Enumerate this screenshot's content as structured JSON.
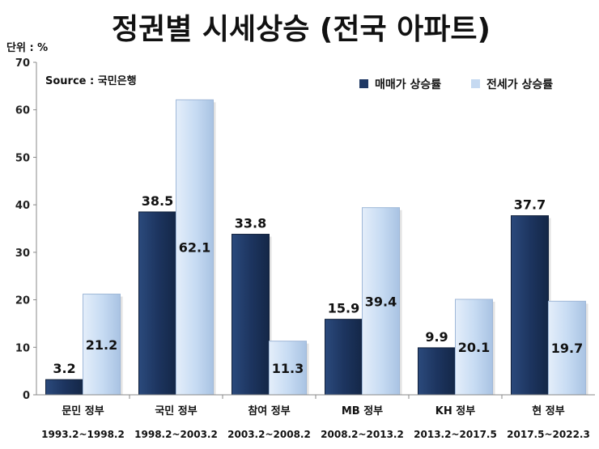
{
  "chart_data": {
    "type": "bar",
    "title": "정권별 시세상승 (전국 아파트)",
    "unit_label": "단위 : %",
    "source": "Source : 국민은행",
    "categories": [
      "문민 정부",
      "국민 정부",
      "참여 정부",
      "MB 정부",
      "KH 정부",
      "현 정부"
    ],
    "periods": [
      "1993.2~1998.2",
      "1998.2~2003.2",
      "2003.2~2008.2",
      "2008.2~2013.2",
      "2013.2~2017.5",
      "2017.5~2022.3"
    ],
    "series": [
      {
        "name": "매매가 상승률",
        "color": "#1f3864",
        "values": [
          3.2,
          38.5,
          33.8,
          15.9,
          9.9,
          37.7
        ]
      },
      {
        "name": "전세가 상승률",
        "color": "#c5d9f1",
        "values": [
          21.2,
          62.1,
          11.3,
          39.4,
          20.1,
          19.7
        ]
      }
    ],
    "ylim": [
      0,
      70
    ],
    "yticks": [
      0,
      10,
      20,
      30,
      40,
      50,
      60,
      70
    ],
    "legend_position": "top-right",
    "grid": false
  }
}
